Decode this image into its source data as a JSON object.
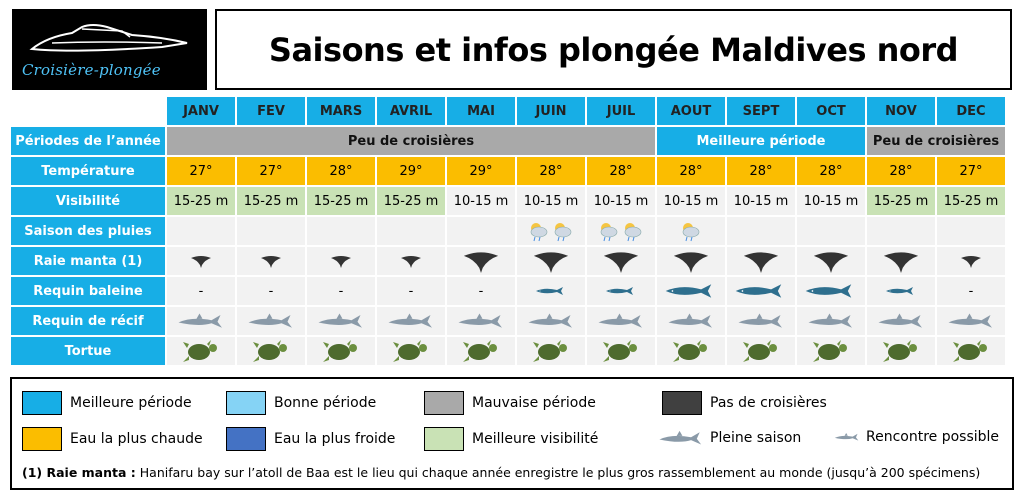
{
  "logo": {
    "text": "Croisière-plongée"
  },
  "title": "Saisons et infos plongée Maldives nord",
  "months": [
    "JANV",
    "FEV",
    "MARS",
    "AVRIL",
    "MAI",
    "JUIN",
    "JUIL",
    "AOUT",
    "SEPT",
    "OCT",
    "NOV",
    "DEC"
  ],
  "rows": {
    "periods": {
      "label": "Périodes de l’année",
      "segments": [
        "Peu de croisières",
        "Meilleure période",
        "Peu de croisières"
      ]
    },
    "temperature": {
      "label": "Température",
      "values": [
        "27°",
        "27°",
        "28°",
        "29°",
        "29°",
        "28°",
        "28°",
        "28°",
        "28°",
        "28°",
        "28°",
        "27°"
      ]
    },
    "visibility": {
      "label": "Visibilité",
      "values": [
        "15-25 m",
        "15-25 m",
        "15-25 m",
        "15-25 m",
        "10-15 m",
        "10-15 m",
        "10-15 m",
        "10-15 m",
        "10-15 m",
        "10-15 m",
        "15-25 m",
        "15-25 m"
      ]
    },
    "rain": {
      "label": "Saison des pluies"
    },
    "manta": {
      "label": "Raie manta (1)"
    },
    "whaleshark": {
      "label": "Requin baleine",
      "dash": "-"
    },
    "reefshark": {
      "label": "Requin de récif"
    },
    "turtle": {
      "label": "Tortue"
    }
  },
  "legend": {
    "best_period": "Meilleure période",
    "good_period": "Bonne période",
    "bad_period": "Mauvaise période",
    "no_cruise": "Pas de croisières",
    "warmest": "Eau la plus chaude",
    "coldest": "Eau la plus froide",
    "best_visibility": "Meilleure visibilité",
    "high_season": "Pleine saison",
    "possible": "Rencontre possible"
  },
  "note": {
    "bold": "(1) Raie manta :",
    "text": " Hanifaru bay sur l’atoll de Baa est le lieu qui chaque année enregistre le plus gros rassemblement au monde (jusqu’à 200 spécimens)"
  },
  "colors": {
    "best": "#17aee6",
    "good": "#85d3f5",
    "bad": "#a9a9a9",
    "none": "#404040",
    "warm": "#fbbd00",
    "cold": "#4472c4",
    "vis": "#c9e2b5"
  }
}
